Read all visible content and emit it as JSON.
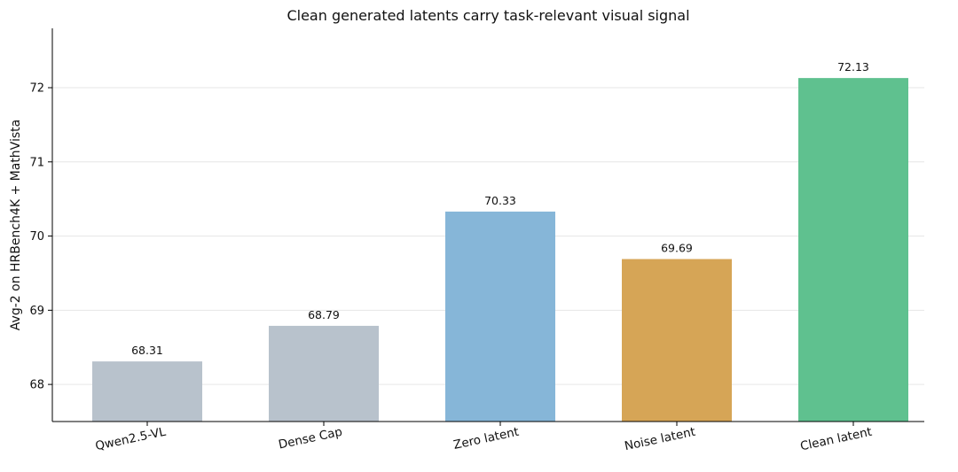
{
  "chart_data": {
    "type": "bar",
    "title": "Clean generated latents carry task-relevant visual signal",
    "xlabel": "",
    "ylabel": "Avg-2 on HRBench4K + MathVista",
    "categories": [
      "Qwen2.5-VL",
      "Dense Cap",
      "Zero latent",
      "Noise latent",
      "Clean latent"
    ],
    "values": [
      68.31,
      68.79,
      70.33,
      69.69,
      72.13
    ],
    "value_labels": [
      "68.31",
      "68.79",
      "70.33",
      "69.69",
      "72.13"
    ],
    "colors": [
      "#b8c2cc",
      "#b8c2cc",
      "#86b6d8",
      "#d6a556",
      "#5fc18f"
    ],
    "ylim": [
      67.5,
      72.8
    ],
    "yticks": [
      68,
      69,
      70,
      71,
      72
    ],
    "ytick_labels": [
      "68",
      "69",
      "70",
      "71",
      "72"
    ],
    "grid": "horizontal",
    "legend": "none"
  }
}
